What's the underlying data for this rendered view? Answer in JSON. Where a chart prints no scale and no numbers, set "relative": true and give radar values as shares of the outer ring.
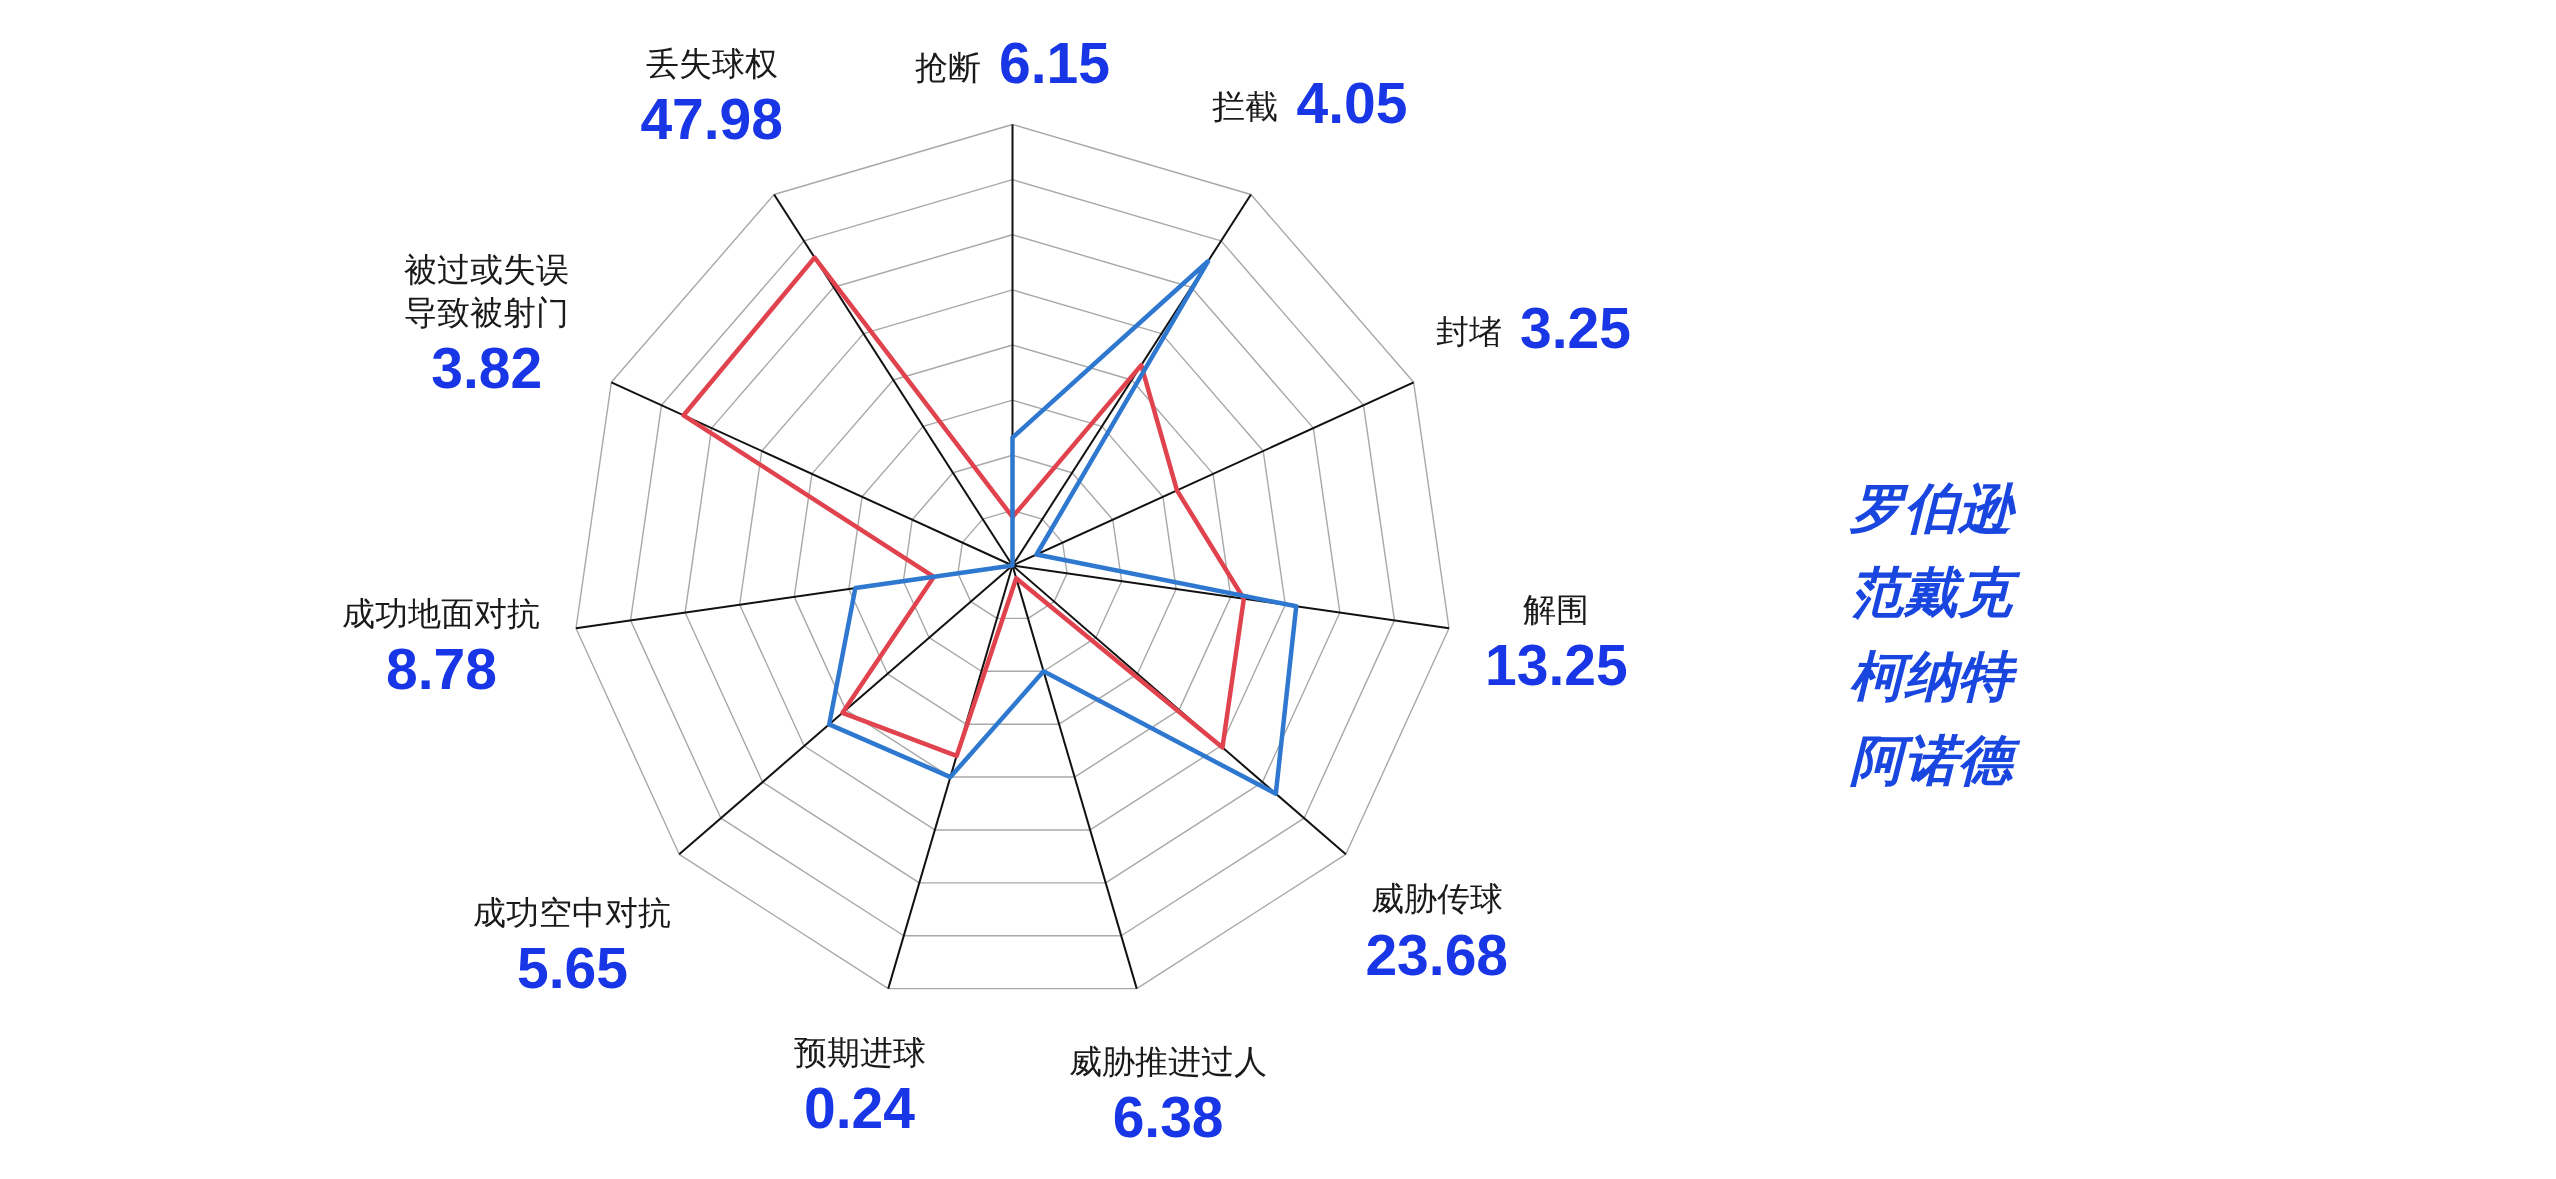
{
  "chart_data": {
    "type": "radar",
    "relative": true,
    "grid": true,
    "categories": [
      "抢断 6.15",
      "拦截 4.05",
      "封堵 3.25",
      "解围\n13.25",
      "威胁传球\n23.68",
      "威胁推进过人\n6.38",
      "预期进球\n0.24",
      "成功空中对抗\n5.65",
      "成功地面对抗\n8.78",
      "被过或失误导致被射门\n3.82",
      "丢失球权\n47.98"
    ],
    "series": [
      {
        "color": "#e0434d",
        "values": [
          0.11,
          0.54,
          0.41,
          0.53,
          0.63,
          0.03,
          0.45,
          0.51,
          0.18,
          0.82,
          0.83
        ]
      },
      {
        "color": "#2f78d0",
        "values": [
          0.29,
          0.82,
          0.06,
          0.65,
          0.79,
          0.25,
          0.5,
          0.55,
          0.36,
          0,
          0
        ]
      }
    ],
    "annotations": [
      "罗伯逊",
      "范戴克",
      "柯纳特",
      "阿诺德"
    ]
  }
}
